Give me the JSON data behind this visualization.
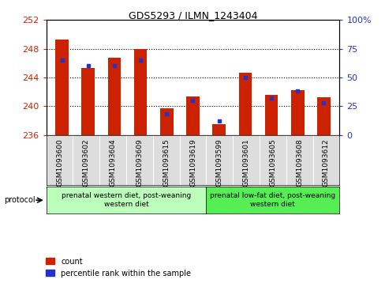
{
  "title": "GDS5293 / ILMN_1243404",
  "samples": [
    "GSM1093600",
    "GSM1093602",
    "GSM1093604",
    "GSM1093609",
    "GSM1093615",
    "GSM1093619",
    "GSM1093599",
    "GSM1093601",
    "GSM1093605",
    "GSM1093608",
    "GSM1093612"
  ],
  "counts": [
    249.3,
    245.3,
    246.8,
    248.0,
    239.7,
    241.4,
    237.5,
    244.7,
    241.6,
    242.2,
    241.3
  ],
  "percentiles": [
    65,
    60,
    60,
    65,
    18,
    30,
    12,
    50,
    32,
    38,
    28
  ],
  "ylim_left": [
    236,
    252
  ],
  "ylim_right": [
    0,
    100
  ],
  "yticks_left": [
    236,
    240,
    244,
    248,
    252
  ],
  "yticks_right": [
    0,
    25,
    50,
    75,
    100
  ],
  "bar_color": "#cc2200",
  "marker_color": "#2233cc",
  "group1_count": 6,
  "group2_count": 5,
  "group1_label": "prenatal western diet, post-weaning\nwestern diet",
  "group2_label": "prenatal low-fat diet, post-weaning\nwestern diet",
  "group1_color": "#bbffbb",
  "group2_color": "#55ee55",
  "protocol_label": "protocol",
  "legend_count": "count",
  "legend_percentile": "percentile rank within the sample",
  "bar_width": 0.5,
  "base_value": 236
}
